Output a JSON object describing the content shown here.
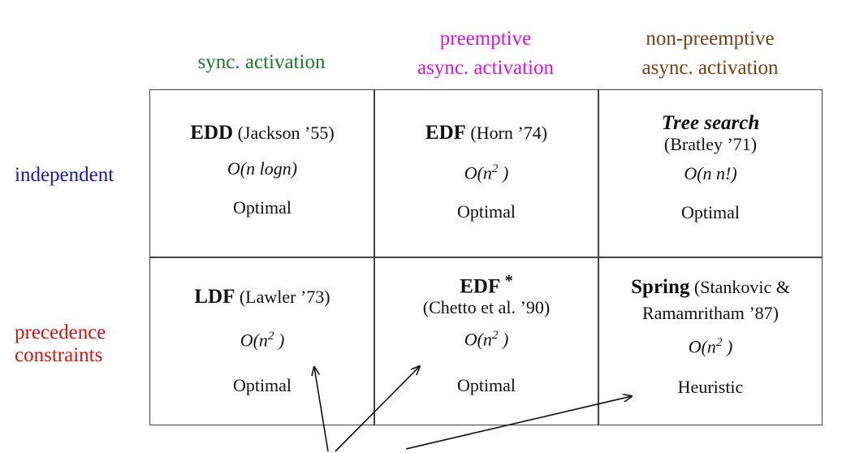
{
  "colors": {
    "sync": "#1a7a2a",
    "preemptive": "#e010e0",
    "nonpreemptive": "#7a3f10",
    "independent": "#1515d0",
    "precedence": "#e01010"
  },
  "columns": {
    "sync": [
      "sync. activation"
    ],
    "preemptive": [
      "preemptive",
      "async. activation"
    ],
    "nonpreemptive": [
      "non-preemptive",
      "async. activation"
    ]
  },
  "rows": {
    "independent": [
      "independent"
    ],
    "precedence": [
      "precedence",
      "constraints"
    ]
  },
  "cells": {
    "r1c1": {
      "name": "EDD",
      "ref": "(Jackson ’55)",
      "complexity": "O(n logn)",
      "result": "Optimal"
    },
    "r1c2": {
      "name": "EDF",
      "ref": "(Horn ’74)",
      "complexity_base": "O(n",
      "complexity_exp": "2",
      "complexity_close": " )",
      "result": "Optimal"
    },
    "r1c3": {
      "name": "Tree search",
      "ref": "(Bratley ’71)",
      "complexity": "O(n n!)",
      "result": "Optimal"
    },
    "r2c1": {
      "name": "LDF",
      "ref": "(Lawler ’73)",
      "complexity_base": "O(n",
      "complexity_exp": "2",
      "complexity_close": " )",
      "result": "Optimal"
    },
    "r2c2": {
      "name": "EDF",
      "star": "*",
      "ref": "(Chetto et al. ’90)",
      "complexity_base": "O(n",
      "complexity_exp": "2",
      "complexity_close": " )",
      "result": "Optimal"
    },
    "r2c3": {
      "name": "Spring",
      "ref": "(Stankovic &",
      "ref2": "Ramamritham ’87)",
      "complexity_base": "O(n",
      "complexity_exp": "2",
      "complexity_close": " )",
      "result": "Heuristic"
    }
  }
}
